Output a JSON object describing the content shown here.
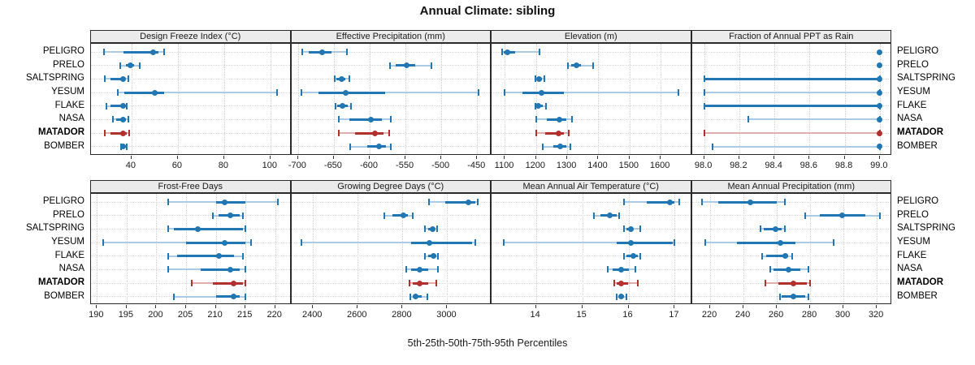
{
  "title": "Annual Climate: sibling",
  "footer": "5th-25th-50th-75th-95th Percentiles",
  "sites": [
    "PELIGRO",
    "PRELO",
    "SALTSPRING",
    "YESUM",
    "FLAKE",
    "NASA",
    "MATADOR",
    "BOMBER"
  ],
  "highlight_site": "MATADOR",
  "percentile_labels": [
    "5th",
    "25th",
    "50th",
    "75th",
    "95th"
  ],
  "colors": {
    "series": "#2077b4",
    "series_light": "#a9cbe5",
    "highlight": "#b2302e",
    "highlight_light": "#e0aeac",
    "strip_bg": "#ebebeb",
    "grid": "#cfcfcf",
    "panel_border": "#2b2b2b"
  },
  "chart_data": {
    "type": "dotplot-percentiles",
    "layout": "2 rows x 4 columns of panels, shared site axis",
    "legend_position": "none",
    "grid": "dotted",
    "panels": [
      {
        "title": "Design Freeze Index (°C)",
        "xlim": [
          22.5,
          109
        ],
        "ticks": [
          40,
          60,
          80,
          100
        ],
        "tick_labels": [
          "40",
          "60",
          "80",
          "100"
        ],
        "values": {
          "PELIGRO": [
            28,
            36.5,
            49.5,
            51.5,
            54
          ],
          "PRELO": [
            35,
            37.5,
            39.5,
            41,
            43.5
          ],
          "SALTSPRING": [
            28.5,
            31,
            36.5,
            37,
            38.5
          ],
          "YESUM": [
            34,
            37,
            50,
            54,
            103
          ],
          "FLAKE": [
            29,
            31,
            36.5,
            37.5,
            38
          ],
          "NASA": [
            32,
            33.5,
            36.5,
            37.5,
            38.5
          ],
          "MATADOR": [
            28.5,
            31,
            36.5,
            38,
            39
          ],
          "BOMBER": [
            35.5,
            36,
            36.5,
            37.5,
            38
          ]
        }
      },
      {
        "title": "Effective Precipitation (mm)",
        "xlim": [
          -709.5,
          -429.8
        ],
        "ticks": [
          -700,
          -650,
          -600,
          -550,
          -500,
          -450
        ],
        "tick_labels": [
          "-700",
          "-650",
          "-600",
          "-550",
          "-500",
          "-450"
        ],
        "values": {
          "PELIGRO": [
            -694,
            -685,
            -666,
            -653,
            -632
          ],
          "PRELO": [
            -572,
            -564,
            -548,
            -537,
            -514
          ],
          "SALTSPRING": [
            -649,
            -647,
            -639,
            -634,
            -628
          ],
          "YESUM": [
            -695,
            -672,
            -633,
            -579,
            -448
          ],
          "FLAKE": [
            -648,
            -645,
            -638,
            -631,
            -626
          ],
          "NASA": [
            -643,
            -628,
            -598,
            -583,
            -571
          ],
          "MATADOR": [
            -643,
            -620,
            -593,
            -581,
            -573
          ],
          "BOMBER": [
            -627,
            -603,
            -587,
            -577,
            -571
          ]
        }
      },
      {
        "title": "Elevation (m)",
        "xlim": [
          1057,
          1700
        ],
        "ticks": [
          1100,
          1200,
          1300,
          1400,
          1500,
          1600
        ],
        "tick_labels": [
          "1100",
          "1200",
          "1300",
          "1400",
          "1500",
          "1600"
        ],
        "values": {
          "PELIGRO": [
            1092,
            1097,
            1107,
            1133,
            1212
          ],
          "PRELO": [
            1302,
            1313,
            1329,
            1345,
            1384
          ],
          "SALTSPRING": [
            1198,
            1202,
            1209,
            1218,
            1226
          ],
          "YESUM": [
            1098,
            1155,
            1217,
            1289,
            1658
          ],
          "FLAKE": [
            1198,
            1202,
            1207,
            1221,
            1233
          ],
          "NASA": [
            1200,
            1235,
            1274,
            1297,
            1315
          ],
          "MATADOR": [
            1200,
            1228,
            1271,
            1289,
            1306
          ],
          "BOMBER": [
            1221,
            1256,
            1277,
            1296,
            1309
          ]
        }
      },
      {
        "title": "Fraction of Annual PPT as Rain",
        "xlim": [
          97.93,
          99.07
        ],
        "ticks": [
          98.0,
          98.2,
          98.4,
          98.6,
          98.8,
          99.0
        ],
        "tick_labels": [
          "98.0",
          "98.2",
          "98.4",
          "98.6",
          "98.8",
          "99.0"
        ],
        "values": {
          "PELIGRO": [
            99,
            99,
            99,
            99,
            99
          ],
          "PRELO": [
            99,
            99,
            99,
            99,
            99
          ],
          "SALTSPRING": [
            98.0,
            98.0,
            99,
            99,
            99
          ],
          "YESUM": [
            98.0,
            99,
            99,
            99,
            99
          ],
          "FLAKE": [
            98.0,
            98.0,
            99,
            99,
            99
          ],
          "NASA": [
            98.25,
            99,
            99,
            99,
            99
          ],
          "MATADOR": [
            98.0,
            99,
            99,
            99,
            99
          ],
          "BOMBER": [
            98.05,
            99,
            99,
            99,
            99
          ]
        }
      },
      {
        "title": "Frost-Free Days",
        "xlim": [
          189,
          222.7
        ],
        "ticks": [
          190,
          195,
          200,
          205,
          210,
          215,
          220
        ],
        "tick_labels": [
          "190",
          "195",
          "200",
          "205",
          "210",
          "215",
          "220"
        ],
        "values": {
          "PELIGRO": [
            202,
            210,
            211.5,
            215,
            220.5
          ],
          "PRELO": [
            209.5,
            210.5,
            212.5,
            214,
            214.5
          ],
          "SALTSPRING": [
            202,
            203,
            207,
            214.5,
            215
          ],
          "YESUM": [
            191,
            205,
            211.5,
            215,
            216
          ],
          "FLAKE": [
            202,
            203.5,
            210.5,
            213,
            214.5
          ],
          "NASA": [
            202,
            207.5,
            212.5,
            214,
            215
          ],
          "MATADOR": [
            206,
            209.5,
            213,
            214.5,
            215
          ],
          "BOMBER": [
            203,
            210,
            213,
            214,
            215
          ]
        }
      },
      {
        "title": "Growing Degree Days (°C)",
        "xlim": [
          2303,
          3198
        ],
        "ticks": [
          2400,
          2600,
          2800,
          3000
        ],
        "tick_labels": [
          "2400",
          "2600",
          "2800",
          "3000"
        ],
        "values": {
          "PELIGRO": [
            2920,
            2990,
            3095,
            3125,
            3135
          ],
          "PRELO": [
            2720,
            2755,
            2805,
            2825,
            2845
          ],
          "SALTSPRING": [
            2900,
            2915,
            2935,
            2945,
            2955
          ],
          "YESUM": [
            2350,
            2840,
            2920,
            3110,
            3125
          ],
          "FLAKE": [
            2900,
            2915,
            2940,
            2950,
            2960
          ],
          "NASA": [
            2815,
            2840,
            2875,
            2915,
            2960
          ],
          "MATADOR": [
            2830,
            2845,
            2875,
            2915,
            2950
          ],
          "BOMBER": [
            2835,
            2845,
            2860,
            2885,
            2910
          ]
        }
      },
      {
        "title": "Mean Annual Air Temperature (°C)",
        "xlim": [
          13.04,
          17.37
        ],
        "ticks": [
          14,
          15,
          16,
          17
        ],
        "tick_labels": [
          "14",
          "15",
          "16",
          "17"
        ],
        "values": {
          "PELIGRO": [
            15.9,
            16.4,
            16.9,
            17.0,
            17.1
          ],
          "PRELO": [
            15.25,
            15.4,
            15.6,
            15.75,
            15.8
          ],
          "SALTSPRING": [
            15.9,
            15.95,
            16.05,
            16.1,
            16.25
          ],
          "YESUM": [
            13.3,
            15.75,
            16.05,
            16.95,
            17.0
          ],
          "FLAKE": [
            15.9,
            15.95,
            16.1,
            16.2,
            16.25
          ],
          "NASA": [
            15.55,
            15.65,
            15.85,
            16.0,
            16.15
          ],
          "MATADOR": [
            15.7,
            15.75,
            15.85,
            16.0,
            16.2
          ],
          "BOMBER": [
            15.75,
            15.8,
            15.85,
            15.9,
            15.95
          ]
        }
      },
      {
        "title": "Mean Annual Precipitation (mm)",
        "xlim": [
          209,
          329.2
        ],
        "ticks": [
          220,
          240,
          260,
          280,
          300,
          320
        ],
        "tick_labels": [
          "220",
          "240",
          "260",
          "280",
          "300",
          "320"
        ],
        "values": {
          "PELIGRO": [
            215,
            225,
            244,
            260,
            265
          ],
          "PRELO": [
            277,
            286,
            299,
            313,
            322
          ],
          "SALTSPRING": [
            250,
            252,
            259,
            263,
            265
          ],
          "YESUM": [
            217,
            236,
            262,
            271,
            294
          ],
          "FLAKE": [
            251,
            253.5,
            265,
            267,
            269
          ],
          "NASA": [
            256,
            258,
            267,
            274,
            279
          ],
          "MATADOR": [
            253,
            261,
            270,
            278,
            280
          ],
          "BOMBER": [
            262,
            263,
            270,
            277,
            279
          ]
        }
      }
    ]
  }
}
